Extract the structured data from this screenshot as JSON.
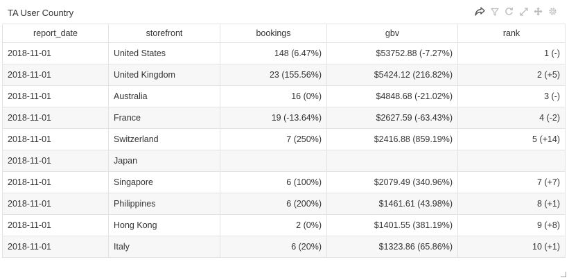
{
  "panel": {
    "title": "TA User Country",
    "tools": [
      {
        "name": "share-icon",
        "label": "share"
      },
      {
        "name": "filter-icon",
        "label": "filter"
      },
      {
        "name": "refresh-icon",
        "label": "refresh"
      },
      {
        "name": "expand-icon",
        "label": "expand"
      },
      {
        "name": "move-icon",
        "label": "move"
      },
      {
        "name": "settings-icon",
        "label": "settings"
      }
    ]
  },
  "table": {
    "columns": [
      "report_date",
      "storefront",
      "bookings",
      "gbv",
      "rank"
    ],
    "rows": [
      [
        "2018-11-01",
        "United States",
        "148 (6.47%)",
        "$53752.88 (-7.27%)",
        "1 (-)"
      ],
      [
        "2018-11-01",
        "United Kingdom",
        "23 (155.56%)",
        "$5424.12 (216.82%)",
        "2 (+5)"
      ],
      [
        "2018-11-01",
        "Australia",
        "16 (0%)",
        "$4848.68 (-21.02%)",
        "3 (-)"
      ],
      [
        "2018-11-01",
        "France",
        "19 (-13.64%)",
        "$2627.59 (-63.43%)",
        "4 (-2)"
      ],
      [
        "2018-11-01",
        "Switzerland",
        "7 (250%)",
        "$2416.88 (859.19%)",
        "5 (+14)"
      ],
      [
        "2018-11-01",
        "Japan",
        "",
        "",
        ""
      ],
      [
        "2018-11-01",
        "Singapore",
        "6 (100%)",
        "$2079.49 (340.96%)",
        "7 (+7)"
      ],
      [
        "2018-11-01",
        "Philippines",
        "6 (200%)",
        "$1461.61 (43.98%)",
        "8 (+1)"
      ],
      [
        "2018-11-01",
        "Hong Kong",
        "2 (0%)",
        "$1401.55 (381.19%)",
        "9 (+8)"
      ],
      [
        "2018-11-01",
        "Italy",
        "6 (20%)",
        "$1323.86 (65.86%)",
        "10 (+1)"
      ]
    ]
  },
  "colors": {
    "border": "#e3e3e3",
    "stripe": "#f7f7f7",
    "icon": "#bbbbbb",
    "icon_active": "#555555",
    "text": "#333333"
  }
}
